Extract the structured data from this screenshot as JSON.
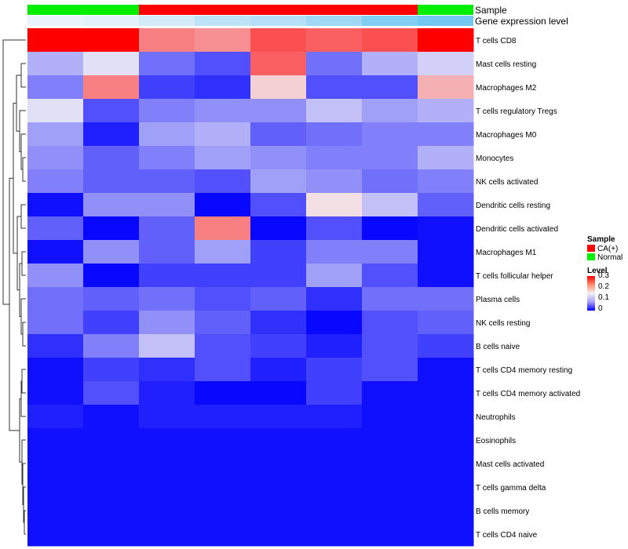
{
  "chart_data": {
    "type": "heatmap",
    "annotation_labels": [
      "Sample",
      "Gene expression level"
    ],
    "sample_groups": [
      "Normal",
      "Normal",
      "CA(+)",
      "CA(+)",
      "CA(+)",
      "CA(+)",
      "CA(+)",
      "Normal"
    ],
    "expression_level": [
      0.05,
      0.1,
      0.2,
      0.35,
      0.4,
      0.55,
      0.75,
      0.85
    ],
    "rows": [
      {
        "label": "T cells CD8",
        "values": [
          0.3,
          0.3,
          0.22,
          0.21,
          0.25,
          0.24,
          0.25,
          0.3
        ]
      },
      {
        "label": "Mast cells resting",
        "values": [
          0.11,
          0.14,
          0.07,
          0.05,
          0.24,
          0.07,
          0.11,
          0.13
        ]
      },
      {
        "label": "Macrophages M2",
        "values": [
          0.08,
          0.22,
          0.04,
          0.03,
          0.17,
          0.05,
          0.05,
          0.19
        ]
      },
      {
        "label": "T cells regulatory  Tregs",
        "values": [
          0.14,
          0.05,
          0.08,
          0.09,
          0.09,
          0.12,
          0.1,
          0.11
        ]
      },
      {
        "label": "Macrophages M0",
        "values": [
          0.1,
          0.02,
          0.1,
          0.11,
          0.06,
          0.07,
          0.08,
          0.08
        ]
      },
      {
        "label": "Monocytes",
        "values": [
          0.09,
          0.06,
          0.08,
          0.1,
          0.09,
          0.08,
          0.08,
          0.11
        ]
      },
      {
        "label": "NK cells activated",
        "values": [
          0.08,
          0.06,
          0.06,
          0.05,
          0.1,
          0.09,
          0.07,
          0.08
        ]
      },
      {
        "label": "Dendritic cells resting",
        "values": [
          0.01,
          0.09,
          0.09,
          0.005,
          0.05,
          0.16,
          0.12,
          0.06
        ]
      },
      {
        "label": "Dendritic cells activated",
        "values": [
          0.06,
          0.005,
          0.06,
          0.22,
          0.005,
          0.05,
          0.005,
          0.01
        ]
      },
      {
        "label": "Macrophages M1",
        "values": [
          0.01,
          0.09,
          0.06,
          0.1,
          0.04,
          0.08,
          0.08,
          0.01
        ]
      },
      {
        "label": "T cells follicular helper",
        "values": [
          0.09,
          0.005,
          0.04,
          0.04,
          0.04,
          0.1,
          0.05,
          0.01
        ]
      },
      {
        "label": "Plasma cells",
        "values": [
          0.07,
          0.06,
          0.07,
          0.05,
          0.06,
          0.03,
          0.07,
          0.07
        ]
      },
      {
        "label": "NK cells resting",
        "values": [
          0.07,
          0.04,
          0.09,
          0.06,
          0.03,
          0.005,
          0.05,
          0.06
        ]
      },
      {
        "label": "B cells naive",
        "values": [
          0.03,
          0.08,
          0.12,
          0.05,
          0.04,
          0.02,
          0.05,
          0.04
        ]
      },
      {
        "label": "T cells CD4 memory resting",
        "values": [
          0.01,
          0.04,
          0.03,
          0.05,
          0.02,
          0.04,
          0.05,
          0.01
        ]
      },
      {
        "label": "T cells CD4 memory activated",
        "values": [
          0.01,
          0.05,
          0.02,
          0.005,
          0.005,
          0.04,
          0.01,
          0.01
        ]
      },
      {
        "label": "Neutrophils",
        "values": [
          0.02,
          0.01,
          0.02,
          0.02,
          0.02,
          0.02,
          0.01,
          0.01
        ]
      },
      {
        "label": "Eosinophils",
        "values": [
          0.01,
          0.01,
          0.01,
          0.01,
          0.01,
          0.01,
          0.01,
          0.01
        ]
      },
      {
        "label": "Mast cells activated",
        "values": [
          0.01,
          0.01,
          0.01,
          0.01,
          0.01,
          0.01,
          0.01,
          0.01
        ]
      },
      {
        "label": "T cells gamma delta",
        "values": [
          0.01,
          0.01,
          0.01,
          0.01,
          0.01,
          0.01,
          0.01,
          0.01
        ]
      },
      {
        "label": "B cells memory",
        "values": [
          0.01,
          0.01,
          0.01,
          0.01,
          0.01,
          0.01,
          0.01,
          0.01
        ]
      },
      {
        "label": "T cells CD4 naive",
        "values": [
          0.01,
          0.01,
          0.01,
          0.01,
          0.01,
          0.01,
          0.01,
          0.01
        ]
      }
    ],
    "legend": {
      "sample": {
        "title": "Sample",
        "items": [
          {
            "label": "CA(+)",
            "color": "#ff0000"
          },
          {
            "label": "Normal",
            "color": "#00ee00"
          }
        ]
      },
      "level": {
        "title": "Level",
        "ticks": [
          "0.3",
          "0.2",
          "0.1",
          "0"
        ],
        "range": [
          0,
          0.3
        ]
      }
    },
    "colors": {
      "low": "#0000ff",
      "mid": "#f2f0f5",
      "high": "#ff0000",
      "expression_low": "#f2f6fc",
      "expression_high": "#5bc0f0"
    }
  }
}
